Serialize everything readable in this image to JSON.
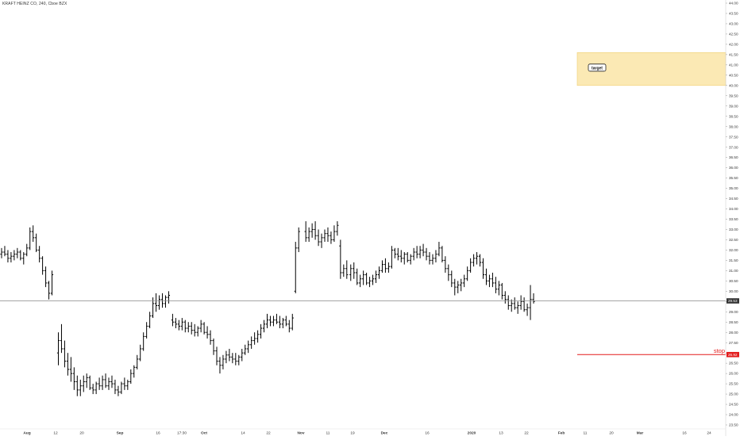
{
  "header": {
    "symbol_line": "KRAFT HEINZ CO, 240, Cboe BZX"
  },
  "chart_data": {
    "type": "ohlc",
    "title": "KRAFT HEINZ CO, 240, Cboe BZX",
    "ylim": [
      23.5,
      44.0
    ],
    "y_ticks": [
      "44.00",
      "43.50",
      "43.00",
      "42.50",
      "42.00",
      "41.50",
      "41.00",
      "40.50",
      "40.00",
      "39.50",
      "39.00",
      "38.50",
      "38.00",
      "37.50",
      "37.00",
      "36.50",
      "36.00",
      "35.50",
      "35.00",
      "34.50",
      "34.00",
      "33.50",
      "33.00",
      "32.50",
      "32.00",
      "31.50",
      "31.00",
      "30.50",
      "30.00",
      "29.50",
      "29.00",
      "28.50",
      "28.00",
      "27.50",
      "27.00",
      "26.50",
      "26.00",
      "25.50",
      "25.00",
      "24.50",
      "24.00",
      "23.50"
    ],
    "x_ticks": [
      "Aug",
      "12",
      "20",
      "Sep",
      "16",
      "17:30",
      "Oct",
      "14",
      "22",
      "Nov",
      "11",
      "19",
      "Dec",
      "16",
      "2020",
      "13",
      "22",
      "Feb",
      "11",
      "20",
      "Mar",
      "16",
      "24"
    ],
    "grid": false,
    "colors": {
      "bars": "#000000",
      "current_line": "#888888",
      "stop": "#e31b1b",
      "target_fill": "#fbe9b4",
      "target_border": "#f0cf74",
      "price_badge": "#333333"
    },
    "current_price": {
      "label": "29.53",
      "value": 29.53
    },
    "stop": {
      "label": "stop",
      "price_label": "26.92",
      "value": 26.92
    },
    "target_zone": {
      "label": "target",
      "low": 40.0,
      "high": 41.6
    },
    "series": [
      {
        "values": [
          [
            31.8,
            32.1,
            31.6,
            31.9
          ],
          [
            31.9,
            32.2,
            31.7,
            31.8
          ],
          [
            31.8,
            32.0,
            31.4,
            31.6
          ],
          [
            31.6,
            31.9,
            31.4,
            31.7
          ],
          [
            31.7,
            32.0,
            31.5,
            31.8
          ],
          [
            31.8,
            32.1,
            31.6,
            31.9
          ],
          [
            31.9,
            32.0,
            31.5,
            31.6
          ],
          [
            31.6,
            31.9,
            31.3,
            31.8
          ],
          [
            31.8,
            32.3,
            31.7,
            32.1
          ],
          [
            32.1,
            33.1,
            32.0,
            32.9
          ],
          [
            32.9,
            33.2,
            32.4,
            32.6
          ],
          [
            32.6,
            32.8,
            31.9,
            32.0
          ],
          [
            32.0,
            32.2,
            31.4,
            31.6
          ],
          [
            31.6,
            31.7,
            30.8,
            31.0
          ],
          [
            31.0,
            31.2,
            30.2,
            30.4
          ],
          [
            30.4,
            30.5,
            29.6,
            29.9
          ],
          [
            29.9,
            31.0,
            29.8,
            30.8
          ],
          [
            27.0,
            28.0,
            26.4,
            27.6
          ],
          [
            27.6,
            28.4,
            27.0,
            27.2
          ],
          [
            27.2,
            27.6,
            26.3,
            26.6
          ],
          [
            26.6,
            27.0,
            25.9,
            26.2
          ],
          [
            26.2,
            26.8,
            25.6,
            26.0
          ],
          [
            26.0,
            26.3,
            25.2,
            25.6
          ],
          [
            25.6,
            25.9,
            24.9,
            25.2
          ],
          [
            25.2,
            25.7,
            24.9,
            25.4
          ],
          [
            25.4,
            25.9,
            25.1,
            25.6
          ],
          [
            25.6,
            26.0,
            25.3,
            25.8
          ],
          [
            25.8,
            25.9,
            25.2,
            25.3
          ],
          [
            25.3,
            25.5,
            25.0,
            25.2
          ],
          [
            25.2,
            25.6,
            25.0,
            25.5
          ],
          [
            25.5,
            25.8,
            25.2,
            25.4
          ],
          [
            25.4,
            25.9,
            25.2,
            25.7
          ],
          [
            25.7,
            26.0,
            25.3,
            25.4
          ],
          [
            25.4,
            25.8,
            25.2,
            25.6
          ],
          [
            25.6,
            25.9,
            25.3,
            25.5
          ],
          [
            25.5,
            25.7,
            25.0,
            25.2
          ],
          [
            25.2,
            25.4,
            24.9,
            25.1
          ],
          [
            25.1,
            25.6,
            25.0,
            25.5
          ],
          [
            25.5,
            25.8,
            25.2,
            25.4
          ],
          [
            25.4,
            25.7,
            25.2,
            25.6
          ],
          [
            25.6,
            26.2,
            25.5,
            26.0
          ],
          [
            26.0,
            26.4,
            25.8,
            26.3
          ],
          [
            26.3,
            26.9,
            26.2,
            26.7
          ],
          [
            26.7,
            27.4,
            26.6,
            27.2
          ],
          [
            27.2,
            28.0,
            27.1,
            27.8
          ],
          [
            27.8,
            28.5,
            27.7,
            28.3
          ],
          [
            28.3,
            29.0,
            28.2,
            28.8
          ],
          [
            28.8,
            29.7,
            28.7,
            29.4
          ],
          [
            29.4,
            29.9,
            29.0,
            29.3
          ],
          [
            29.3,
            29.8,
            29.1,
            29.6
          ],
          [
            29.6,
            29.9,
            29.2,
            29.4
          ],
          [
            29.4,
            29.8,
            29.2,
            29.7
          ],
          [
            29.7,
            30.0,
            29.4,
            29.8
          ],
          [
            28.6,
            28.9,
            28.3,
            28.5
          ],
          [
            28.5,
            28.7,
            28.2,
            28.4
          ],
          [
            28.4,
            28.6,
            28.1,
            28.3
          ],
          [
            28.3,
            28.7,
            28.1,
            28.5
          ],
          [
            28.5,
            28.6,
            28.0,
            28.2
          ],
          [
            28.2,
            28.5,
            28.0,
            28.3
          ],
          [
            28.3,
            28.5,
            27.9,
            28.1
          ],
          [
            28.1,
            28.4,
            27.8,
            28.0
          ],
          [
            28.0,
            28.3,
            27.8,
            28.2
          ],
          [
            28.2,
            28.6,
            28.0,
            28.4
          ],
          [
            28.4,
            28.5,
            27.9,
            28.0
          ],
          [
            28.0,
            28.3,
            27.7,
            27.9
          ],
          [
            27.9,
            28.1,
            27.4,
            27.6
          ],
          [
            27.6,
            27.7,
            26.9,
            27.1
          ],
          [
            27.1,
            27.3,
            26.4,
            26.6
          ],
          [
            26.6,
            26.8,
            26.0,
            26.4
          ],
          [
            26.4,
            26.9,
            26.2,
            26.7
          ],
          [
            26.7,
            27.1,
            26.5,
            26.9
          ],
          [
            26.9,
            27.2,
            26.6,
            26.8
          ],
          [
            26.8,
            27.0,
            26.5,
            26.7
          ],
          [
            26.7,
            27.0,
            26.4,
            26.6
          ],
          [
            26.6,
            26.9,
            26.4,
            26.8
          ],
          [
            26.8,
            27.2,
            26.6,
            27.0
          ],
          [
            27.0,
            27.4,
            26.9,
            27.2
          ],
          [
            27.2,
            27.6,
            27.0,
            27.4
          ],
          [
            27.4,
            27.8,
            27.2,
            27.6
          ],
          [
            27.6,
            28.0,
            27.4,
            27.7
          ],
          [
            27.7,
            28.1,
            27.5,
            27.9
          ],
          [
            27.9,
            28.4,
            27.7,
            28.2
          ],
          [
            28.2,
            28.6,
            28.0,
            28.4
          ],
          [
            28.4,
            28.9,
            28.2,
            28.6
          ],
          [
            28.6,
            28.8,
            28.3,
            28.5
          ],
          [
            28.5,
            28.8,
            28.3,
            28.6
          ],
          [
            28.6,
            28.9,
            28.4,
            28.5
          ],
          [
            28.5,
            28.8,
            28.2,
            28.4
          ],
          [
            28.4,
            28.7,
            28.2,
            28.6
          ],
          [
            28.6,
            28.8,
            28.3,
            28.4
          ],
          [
            28.4,
            28.6,
            28.0,
            28.2
          ],
          [
            28.2,
            28.9,
            28.1,
            28.7
          ],
          [
            30.0,
            32.4,
            29.9,
            32.1
          ],
          [
            32.1,
            33.1,
            31.9,
            32.9
          ],
          [
            32.9,
            33.4,
            32.4,
            32.6
          ],
          [
            32.6,
            33.1,
            32.4,
            32.9
          ],
          [
            32.9,
            33.3,
            32.6,
            33.0
          ],
          [
            33.0,
            33.4,
            32.5,
            32.7
          ],
          [
            32.7,
            33.0,
            32.2,
            32.4
          ],
          [
            32.4,
            32.8,
            32.1,
            32.6
          ],
          [
            32.6,
            33.0,
            32.4,
            32.8
          ],
          [
            32.8,
            33.1,
            32.4,
            32.7
          ],
          [
            32.7,
            32.9,
            32.3,
            32.5
          ],
          [
            32.5,
            33.2,
            32.4,
            32.9
          ],
          [
            32.9,
            33.4,
            32.7,
            33.2
          ],
          [
            32.2,
            32.5,
            30.6,
            30.9
          ],
          [
            30.9,
            31.3,
            30.7,
            31.1
          ],
          [
            31.1,
            31.5,
            30.6,
            30.8
          ],
          [
            30.8,
            31.3,
            30.5,
            31.1
          ],
          [
            31.1,
            31.4,
            30.6,
            30.9
          ],
          [
            30.9,
            31.1,
            30.3,
            30.4
          ],
          [
            30.4,
            30.8,
            30.2,
            30.6
          ],
          [
            30.6,
            31.0,
            30.3,
            30.8
          ],
          [
            30.8,
            30.9,
            30.3,
            30.4
          ],
          [
            30.4,
            30.7,
            30.2,
            30.5
          ],
          [
            30.5,
            30.8,
            30.3,
            30.6
          ],
          [
            30.6,
            31.0,
            30.4,
            30.8
          ],
          [
            30.8,
            31.2,
            30.6,
            31.0
          ],
          [
            31.0,
            31.5,
            30.9,
            31.3
          ],
          [
            31.3,
            31.6,
            30.9,
            31.1
          ],
          [
            31.1,
            31.4,
            30.9,
            31.2
          ],
          [
            31.2,
            32.2,
            31.1,
            32.0
          ],
          [
            32.0,
            32.1,
            31.6,
            31.8
          ],
          [
            31.8,
            32.1,
            31.5,
            31.7
          ],
          [
            31.7,
            32.0,
            31.4,
            31.6
          ],
          [
            31.6,
            31.9,
            31.3,
            31.8
          ],
          [
            31.8,
            31.9,
            31.4,
            31.5
          ],
          [
            31.5,
            31.8,
            31.3,
            31.7
          ],
          [
            31.7,
            32.1,
            31.5,
            31.9
          ],
          [
            31.9,
            32.2,
            31.6,
            31.8
          ],
          [
            31.8,
            32.2,
            31.6,
            32.0
          ],
          [
            32.0,
            32.3,
            31.7,
            31.9
          ],
          [
            31.9,
            32.1,
            31.5,
            31.7
          ],
          [
            31.7,
            31.9,
            31.3,
            31.5
          ],
          [
            31.5,
            31.8,
            31.3,
            31.6
          ],
          [
            31.6,
            32.0,
            31.4,
            31.8
          ],
          [
            31.8,
            32.4,
            31.7,
            32.1
          ],
          [
            32.1,
            32.2,
            31.4,
            31.5
          ],
          [
            31.5,
            31.7,
            30.9,
            31.1
          ],
          [
            31.1,
            31.3,
            30.5,
            30.8
          ],
          [
            30.8,
            31.0,
            30.2,
            30.4
          ],
          [
            30.4,
            30.6,
            29.8,
            30.2
          ],
          [
            30.2,
            30.5,
            29.9,
            30.3
          ],
          [
            30.3,
            30.6,
            30.0,
            30.4
          ],
          [
            30.4,
            30.8,
            30.2,
            30.6
          ],
          [
            30.6,
            31.2,
            30.5,
            31.0
          ],
          [
            31.0,
            31.6,
            30.9,
            31.4
          ],
          [
            31.4,
            31.8,
            31.2,
            31.6
          ],
          [
            31.6,
            31.9,
            31.3,
            31.7
          ],
          [
            31.7,
            31.8,
            31.2,
            31.4
          ],
          [
            31.4,
            31.6,
            30.6,
            30.8
          ],
          [
            30.8,
            31.1,
            30.3,
            30.5
          ],
          [
            30.5,
            30.8,
            30.2,
            30.6
          ],
          [
            30.6,
            30.9,
            30.2,
            30.4
          ],
          [
            30.4,
            30.7,
            29.9,
            30.1
          ],
          [
            30.1,
            30.5,
            29.8,
            30.3
          ],
          [
            30.3,
            30.4,
            29.6,
            29.8
          ],
          [
            29.8,
            30.0,
            29.4,
            29.6
          ],
          [
            29.6,
            29.8,
            29.1,
            29.3
          ],
          [
            29.3,
            29.6,
            29.0,
            29.4
          ],
          [
            29.4,
            29.7,
            29.1,
            29.2
          ],
          [
            29.2,
            29.5,
            28.9,
            29.3
          ],
          [
            29.3,
            29.8,
            29.1,
            29.5
          ],
          [
            29.5,
            29.7,
            29.0,
            29.1
          ],
          [
            29.1,
            29.4,
            28.8,
            29.2
          ],
          [
            29.2,
            30.3,
            28.6,
            29.6
          ],
          [
            29.6,
            29.9,
            29.4,
            29.5
          ]
        ]
      }
    ]
  }
}
